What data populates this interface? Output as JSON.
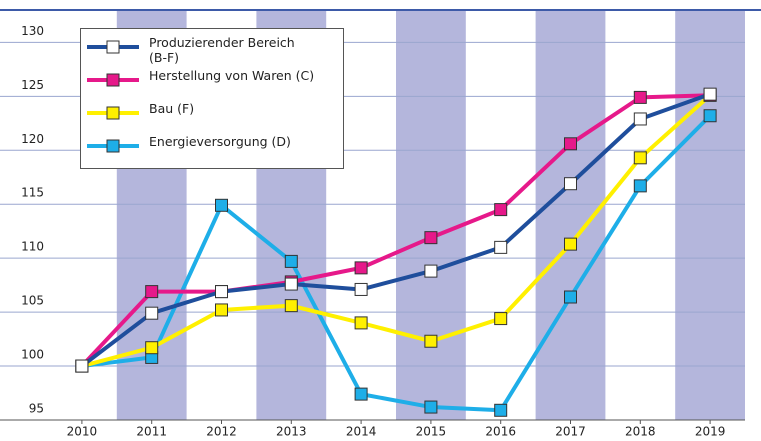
{
  "chart_data": {
    "type": "line",
    "x": [
      2010,
      2011,
      2012,
      2013,
      2014,
      2015,
      2016,
      2017,
      2018,
      2019
    ],
    "xlim": [
      2009.5,
      2019.5
    ],
    "ylim": [
      95,
      133
    ],
    "yticks": [
      95,
      100,
      105,
      110,
      115,
      120,
      125,
      130
    ],
    "grid": true,
    "legend": "upper left",
    "series": [
      {
        "name": "Produzierender Bereich\n(B-F)",
        "color": "#1f4e9c",
        "marker_fill": "#ffffff",
        "values": [
          100,
          104.9,
          106.9,
          107.6,
          107.1,
          108.8,
          111.0,
          116.9,
          122.9,
          125.2
        ]
      },
      {
        "name": "Herstellung von Waren (C)",
        "color": "#e6198a",
        "marker_fill": "#e6198a",
        "values": [
          100,
          106.9,
          106.9,
          107.8,
          109.1,
          111.9,
          114.5,
          120.6,
          124.9,
          125.1
        ]
      },
      {
        "name": "Bau (F)",
        "color": "#fff000",
        "marker_fill": "#fff000",
        "values": [
          100,
          101.7,
          105.2,
          105.6,
          104.0,
          102.3,
          104.4,
          111.3,
          119.3,
          125.1
        ]
      },
      {
        "name": "Energieversorgung (D)",
        "color": "#1eaee8",
        "marker_fill": "#1eaee8",
        "values": [
          100,
          100.8,
          114.9,
          109.7,
          97.4,
          96.2,
          95.9,
          106.4,
          116.7,
          123.2
        ]
      }
    ]
  }
}
